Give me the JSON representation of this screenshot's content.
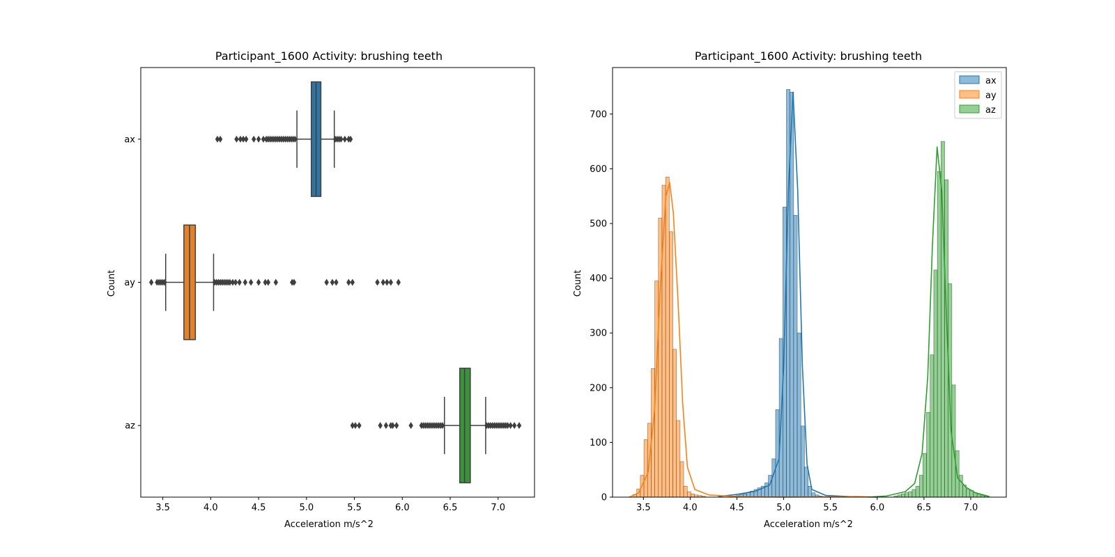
{
  "chart_data": [
    {
      "type": "box",
      "title": "Participant_1600  Activity: brushing teeth",
      "xlabel": "Acceleration m/s^2",
      "ylabel": "Count",
      "xlim": [
        3.27,
        7.38
      ],
      "xticks": [
        "3.5",
        "4.0",
        "4.5",
        "5.0",
        "5.5",
        "6.0",
        "6.5",
        "7.0"
      ],
      "series": [
        {
          "name": "ax",
          "color": "#3274a1",
          "whisker_low": 4.9,
          "q1": 5.05,
          "median": 5.1,
          "q3": 5.15,
          "whisker_high": 5.29,
          "outliers": [
            4.07,
            4.1,
            4.27,
            4.31,
            4.34,
            4.37,
            4.45,
            4.5,
            4.55,
            4.58,
            4.6,
            4.62,
            4.64,
            4.66,
            4.68,
            4.7,
            4.72,
            4.74,
            4.76,
            4.78,
            4.8,
            4.82,
            4.84,
            4.86,
            4.88,
            5.3,
            5.32,
            5.34,
            5.36,
            5.4,
            5.44,
            5.46
          ]
        },
        {
          "name": "ay",
          "color": "#e1812c",
          "whisker_low": 3.53,
          "q1": 3.72,
          "median": 3.78,
          "q3": 3.84,
          "whisker_high": 4.03,
          "outliers": [
            3.38,
            3.44,
            3.46,
            3.48,
            3.5,
            3.52,
            4.04,
            4.06,
            4.08,
            4.1,
            4.12,
            4.14,
            4.16,
            4.18,
            4.2,
            4.23,
            4.26,
            4.3,
            4.36,
            4.42,
            4.5,
            4.57,
            4.6,
            4.68,
            4.85,
            4.87,
            5.21,
            5.27,
            5.31,
            5.44,
            5.48,
            5.74,
            5.8,
            5.84,
            5.88,
            5.96
          ]
        },
        {
          "name": "az",
          "color": "#3a923a",
          "whisker_low": 6.44,
          "q1": 6.6,
          "median": 6.65,
          "q3": 6.71,
          "whisker_high": 6.87,
          "outliers": [
            5.48,
            5.51,
            5.55,
            5.77,
            5.83,
            5.88,
            5.9,
            5.94,
            6.09,
            6.2,
            6.22,
            6.24,
            6.26,
            6.28,
            6.3,
            6.32,
            6.34,
            6.36,
            6.38,
            6.4,
            6.42,
            6.88,
            6.9,
            6.92,
            6.94,
            6.96,
            6.98,
            7.0,
            7.02,
            7.04,
            7.06,
            7.08,
            7.1,
            7.13,
            7.17,
            7.22
          ]
        }
      ]
    },
    {
      "type": "histogram",
      "title": "Participant_1600  Activity: brushing teeth",
      "xlabel": "Acceleration m/s^2",
      "ylabel": "Count",
      "xlim": [
        3.17,
        7.38
      ],
      "ylim": [
        0,
        785
      ],
      "xticks": [
        "3.5",
        "4.0",
        "4.5",
        "5.0",
        "5.5",
        "6.0",
        "6.5",
        "7.0"
      ],
      "yticks": [
        "0",
        "100",
        "200",
        "300",
        "400",
        "500",
        "600",
        "700"
      ],
      "kde": true,
      "legend": "top-right",
      "bin_width": 0.0386,
      "series": [
        {
          "name": "ax",
          "color": "#1f77b4",
          "bin_start": 4.45,
          "counts": [
            2,
            3,
            5,
            6,
            8,
            11,
            14,
            17,
            20,
            26,
            40,
            70,
            160,
            290,
            530,
            745,
            740,
            515,
            300,
            130,
            55,
            20,
            8,
            4,
            2
          ],
          "kde": [
            [
              4.3,
              1
            ],
            [
              4.5,
              5
            ],
            [
              4.7,
              11
            ],
            [
              4.85,
              22
            ],
            [
              4.95,
              70
            ],
            [
              5.0,
              240
            ],
            [
              5.05,
              560
            ],
            [
              5.1,
              740
            ],
            [
              5.15,
              560
            ],
            [
              5.2,
              240
            ],
            [
              5.25,
              60
            ],
            [
              5.3,
              14
            ],
            [
              5.45,
              3
            ],
            [
              5.7,
              1
            ],
            [
              6.0,
              0
            ]
          ]
        },
        {
          "name": "ay",
          "color": "#ff7f0e",
          "bin_start": 3.39,
          "counts": [
            5,
            15,
            40,
            105,
            135,
            235,
            395,
            510,
            570,
            585,
            485,
            270,
            140,
            65,
            20,
            10,
            6,
            4,
            3,
            2
          ],
          "kde": [
            [
              3.35,
              0
            ],
            [
              3.45,
              8
            ],
            [
              3.55,
              45
            ],
            [
              3.62,
              160
            ],
            [
              3.68,
              380
            ],
            [
              3.74,
              550
            ],
            [
              3.78,
              575
            ],
            [
              3.82,
              520
            ],
            [
              3.87,
              360
            ],
            [
              3.92,
              170
            ],
            [
              3.97,
              55
            ],
            [
              4.05,
              14
            ],
            [
              4.2,
              4
            ],
            [
              4.5,
              1
            ],
            [
              5.0,
              0
            ],
            [
              5.8,
              1
            ],
            [
              6.0,
              0
            ]
          ]
        },
        {
          "name": "az",
          "color": "#2ca02c",
          "bin_start": 6.18,
          "counts": [
            2,
            4,
            6,
            8,
            10,
            14,
            20,
            40,
            80,
            155,
            260,
            415,
            595,
            650,
            580,
            390,
            205,
            85,
            40,
            22,
            15,
            12,
            8,
            5,
            3,
            2
          ],
          "kde": [
            [
              5.9,
              0
            ],
            [
              6.1,
              2
            ],
            [
              6.3,
              10
            ],
            [
              6.4,
              25
            ],
            [
              6.48,
              80
            ],
            [
              6.54,
              220
            ],
            [
              6.59,
              460
            ],
            [
              6.64,
              640
            ],
            [
              6.69,
              560
            ],
            [
              6.74,
              330
            ],
            [
              6.79,
              120
            ],
            [
              6.86,
              35
            ],
            [
              6.95,
              18
            ],
            [
              7.05,
              8
            ],
            [
              7.2,
              1
            ]
          ]
        }
      ]
    }
  ]
}
